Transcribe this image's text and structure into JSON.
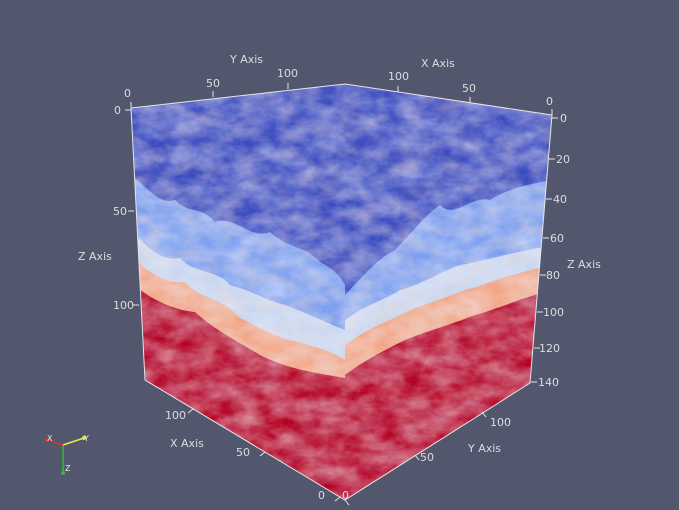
{
  "scene": {
    "background_color": "#52576e",
    "colormap": {
      "low_color": "#3b4cc0",
      "mid_color": "#dddddd",
      "high_color": "#b40426"
    }
  },
  "axes": {
    "y_axis_top": {
      "title": "Y Axis",
      "ticks": [
        "0",
        "50",
        "100"
      ]
    },
    "x_axis_top": {
      "title": "X Axis",
      "ticks": [
        "100",
        "50",
        "0"
      ]
    },
    "z_axis_left": {
      "title": "Z Axis",
      "ticks": [
        "0",
        "50",
        "100"
      ]
    },
    "z_axis_right": {
      "title": "Z Axis",
      "ticks": [
        "0",
        "20",
        "40",
        "60",
        "80",
        "100",
        "120",
        "140"
      ]
    },
    "x_axis_bottom": {
      "title": "X Axis",
      "ticks": [
        "100",
        "50",
        "0"
      ]
    },
    "y_axis_bottom": {
      "title": "Y Axis",
      "ticks": [
        "0",
        "50",
        "100"
      ]
    }
  },
  "orientation_widget": {
    "x_label": "X",
    "y_label": "Y",
    "z_label": "Z"
  }
}
